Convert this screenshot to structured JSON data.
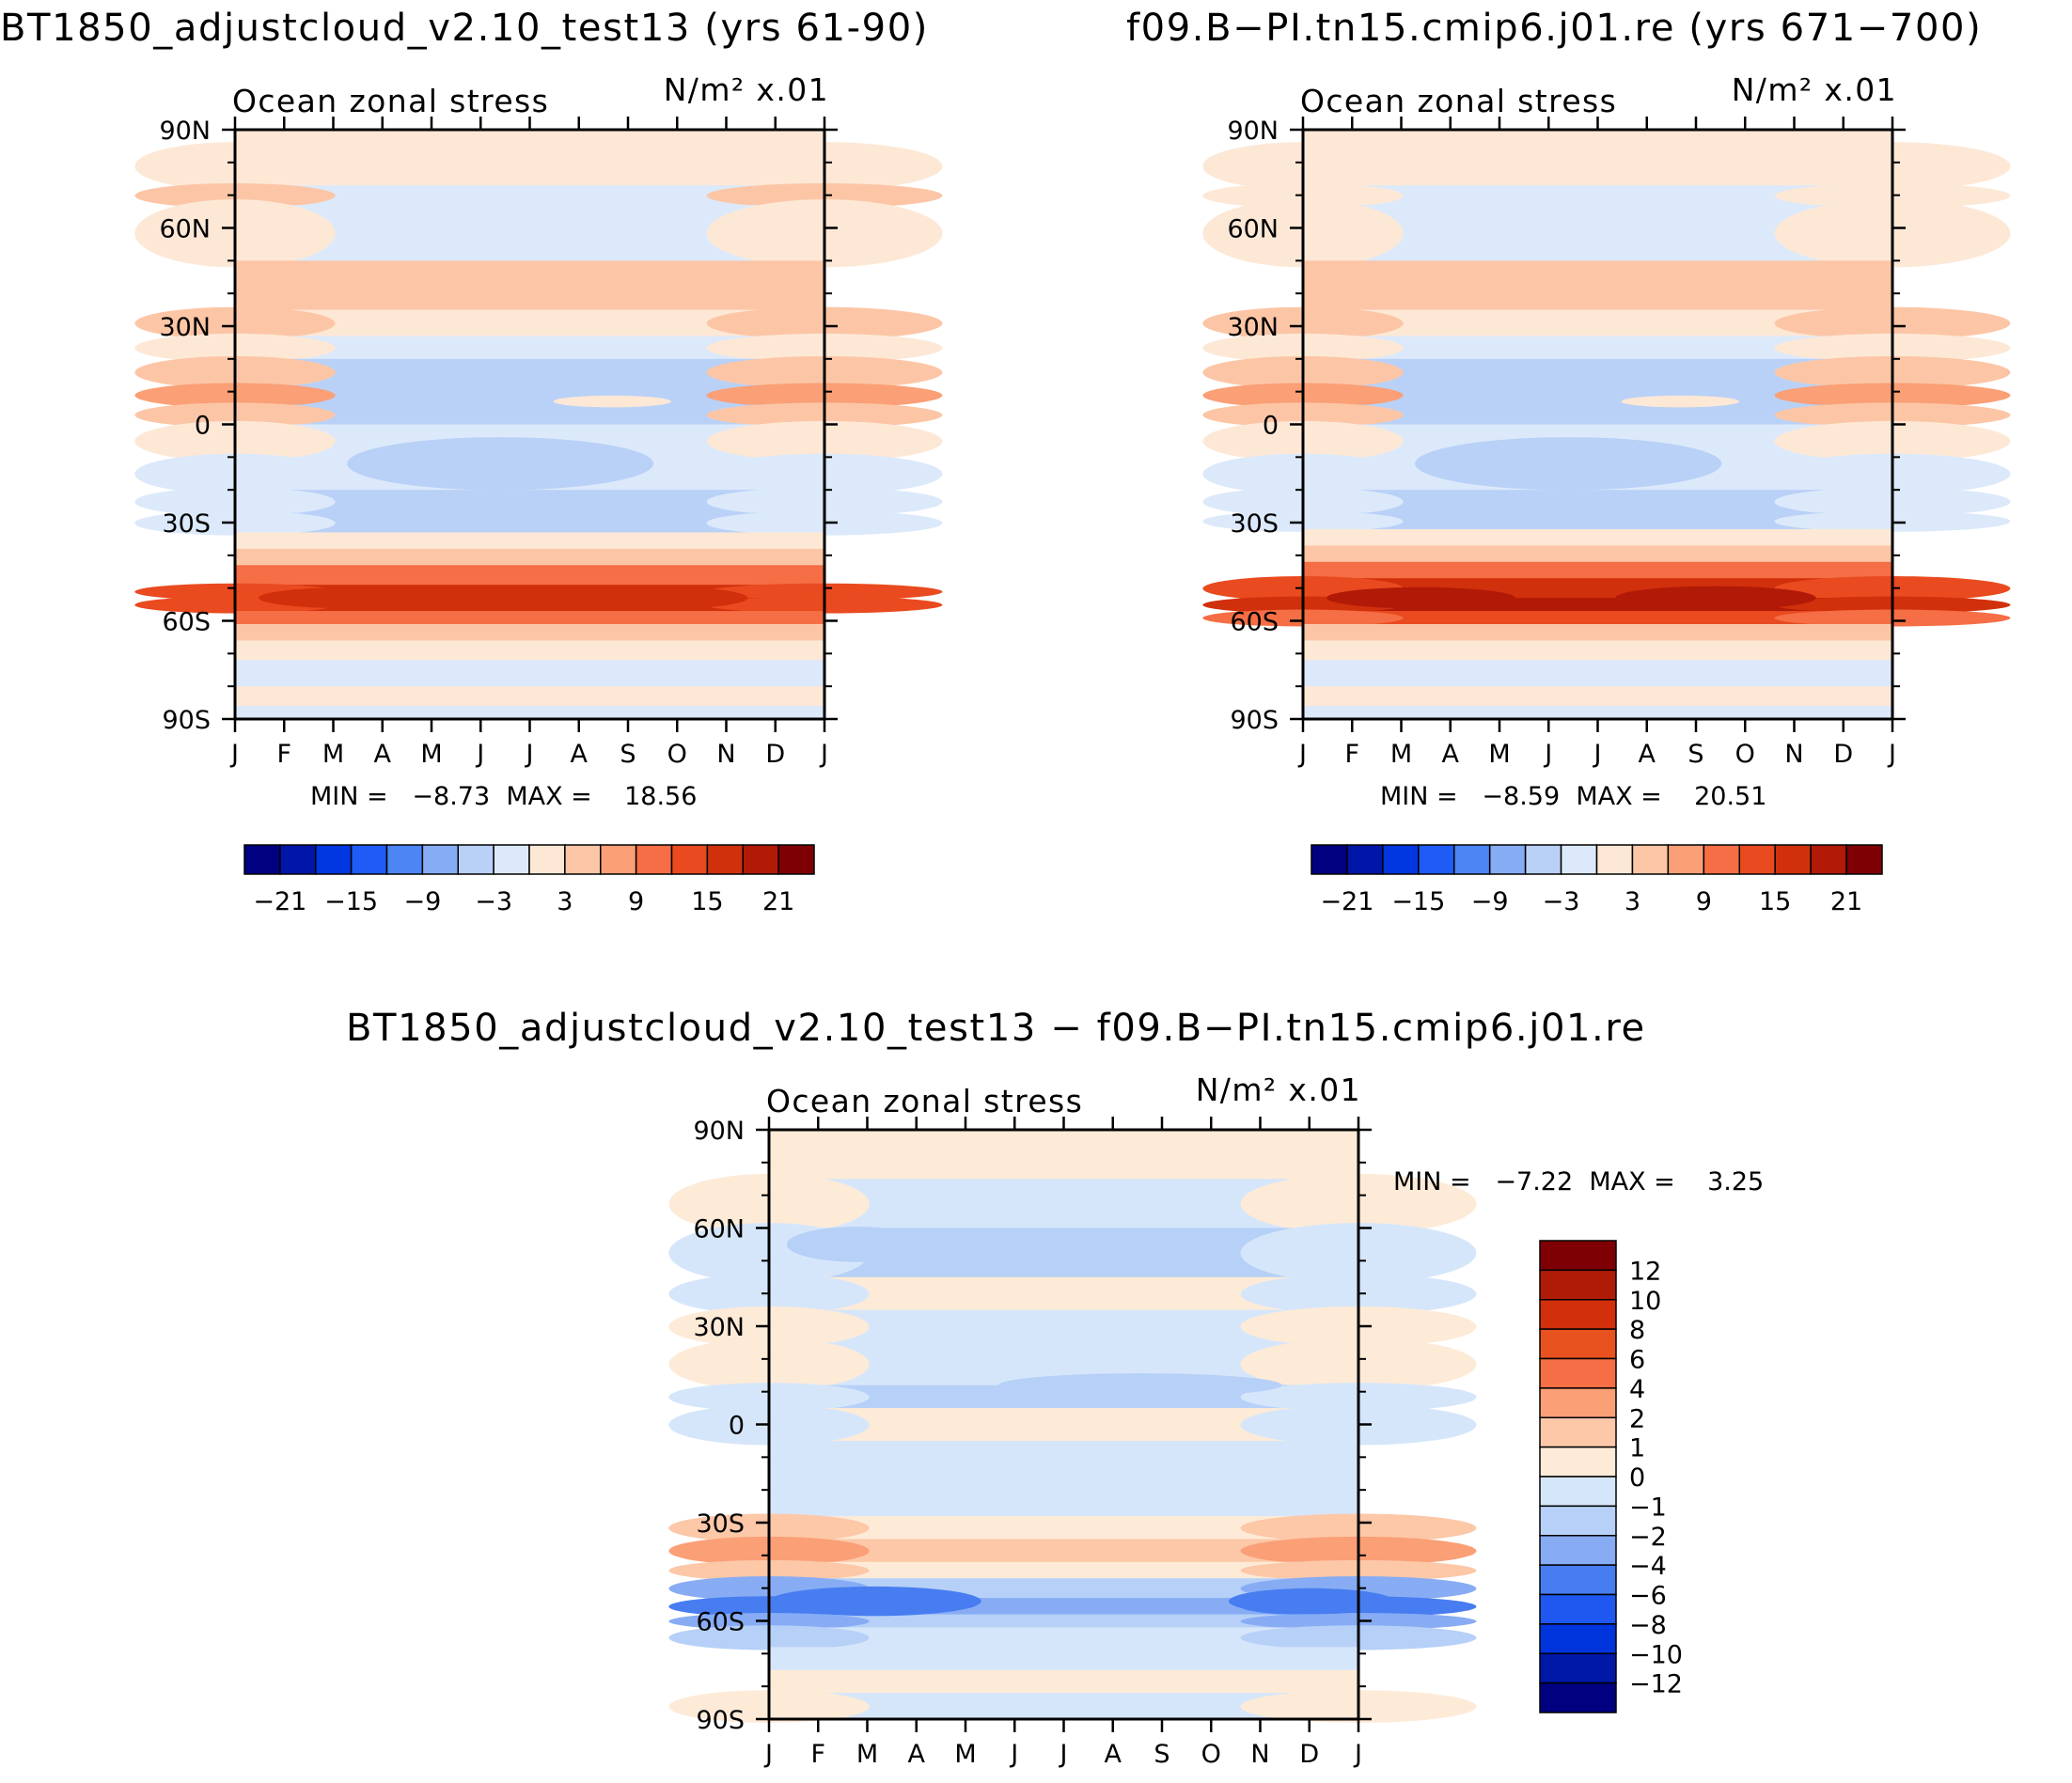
{
  "chart_data": [
    {
      "type": "heatmap",
      "id": "panel_a",
      "title": "BT1850_adjustcloud_v2.10_test13 (yrs 61-90)",
      "subtitle": "Ocean zonal stress",
      "units_label": "N/m² x.01",
      "x_ticks": [
        "J",
        "F",
        "M",
        "A",
        "M",
        "J",
        "J",
        "A",
        "S",
        "O",
        "N",
        "D",
        "J"
      ],
      "y_ticks": [
        "90N",
        "60N",
        "30N",
        "0",
        "30S",
        "60S",
        "90S"
      ],
      "stats_text": "MIN =   −8.73  MAX =    18.56",
      "min": -8.73,
      "max": 18.56,
      "colorbar_labels": [
        "−21",
        "−15",
        "−9",
        "−3",
        "3",
        "9",
        "15",
        "21"
      ],
      "bands": [
        {
          "lat": 85,
          "value": 1.5,
          "edge": 0
        },
        {
          "lat": 73,
          "value": -1.5,
          "edge": 3
        },
        {
          "lat": 67,
          "value": -1.5,
          "edge": 0
        },
        {
          "lat": 50,
          "value": 3,
          "edge": 3
        },
        {
          "lat": 35,
          "value": 1.5,
          "edge": 3
        },
        {
          "lat": 27,
          "value": -1.5,
          "edge": 0
        },
        {
          "lat": 20,
          "value": -4.5,
          "edge": 5
        },
        {
          "lat": 12,
          "value": -6,
          "edge": 8
        },
        {
          "lat": 6,
          "value": -4.5,
          "edge": 3
        },
        {
          "lat": 0,
          "value": -1.5,
          "edge": 0
        },
        {
          "lat": -10,
          "value": -1.5,
          "edge": -3
        },
        {
          "lat": -20,
          "value": -4.5,
          "edge": -3
        },
        {
          "lat": -27,
          "value": -4.5,
          "edge": -1.5
        },
        {
          "lat": -33,
          "value": 1.5,
          "edge": 1.5
        },
        {
          "lat": -38,
          "value": 4.5,
          "edge": 4.5
        },
        {
          "lat": -43,
          "value": 10.5,
          "edge": 10.5
        },
        {
          "lat": -49,
          "value": 16.5,
          "edge": 13.5
        },
        {
          "lat": -53,
          "value": 16.5,
          "edge": 13.5
        },
        {
          "lat": -57,
          "value": 10.5,
          "edge": 10.5
        },
        {
          "lat": -61,
          "value": 4.5,
          "edge": 4.5
        },
        {
          "lat": -66,
          "value": 1.5,
          "edge": 1.5
        },
        {
          "lat": -72,
          "value": -1.5,
          "edge": -1.5
        },
        {
          "lat": -80,
          "value": 1.5,
          "edge": 1.5
        },
        {
          "lat": -86,
          "value": -1.5,
          "edge": -1.5
        },
        {
          "lat": -90,
          "value": -1.5,
          "edge": -1.5
        }
      ]
    },
    {
      "type": "heatmap",
      "id": "panel_b",
      "title": "f09.B−PI.tn15.cmip6.j01.re (yrs 671−700)",
      "subtitle": "Ocean zonal stress",
      "units_label": "N/m² x.01",
      "x_ticks": [
        "J",
        "F",
        "M",
        "A",
        "M",
        "J",
        "J",
        "A",
        "S",
        "O",
        "N",
        "D",
        "J"
      ],
      "y_ticks": [
        "90N",
        "60N",
        "30N",
        "0",
        "30S",
        "60S",
        "90S"
      ],
      "stats_text": "MIN =   −8.59  MAX =    20.51",
      "min": -8.59,
      "max": 20.51,
      "colorbar_labels": [
        "−21",
        "−15",
        "−9",
        "−3",
        "3",
        "9",
        "15",
        "21"
      ],
      "bands": [
        {
          "lat": 85,
          "value": 1.5,
          "edge": 0
        },
        {
          "lat": 73,
          "value": -1.5,
          "edge": 1.5
        },
        {
          "lat": 67,
          "value": -1.5,
          "edge": 0
        },
        {
          "lat": 50,
          "value": 3,
          "edge": 3
        },
        {
          "lat": 35,
          "value": 1.5,
          "edge": 3
        },
        {
          "lat": 27,
          "value": -1.5,
          "edge": 0
        },
        {
          "lat": 20,
          "value": -4.5,
          "edge": 5
        },
        {
          "lat": 12,
          "value": -6,
          "edge": 8
        },
        {
          "lat": 6,
          "value": -4.5,
          "edge": 3
        },
        {
          "lat": 0,
          "value": -1.5,
          "edge": 0
        },
        {
          "lat": -10,
          "value": -1.5,
          "edge": -3
        },
        {
          "lat": -20,
          "value": -4.5,
          "edge": -3
        },
        {
          "lat": -27,
          "value": -4.5,
          "edge": -1.5
        },
        {
          "lat": -32,
          "value": 1.5,
          "edge": 1.5
        },
        {
          "lat": -37,
          "value": 4.5,
          "edge": 4.5
        },
        {
          "lat": -42,
          "value": 10.5,
          "edge": 10.5
        },
        {
          "lat": -47,
          "value": 16.5,
          "edge": 13.5
        },
        {
          "lat": -53,
          "value": 19.5,
          "edge": 16.5
        },
        {
          "lat": -57,
          "value": 13.5,
          "edge": 10.5
        },
        {
          "lat": -61,
          "value": 4.5,
          "edge": 4.5
        },
        {
          "lat": -66,
          "value": 1.5,
          "edge": 1.5
        },
        {
          "lat": -72,
          "value": -1.5,
          "edge": -1.5
        },
        {
          "lat": -80,
          "value": 1.5,
          "edge": 1.5
        },
        {
          "lat": -86,
          "value": -1.5,
          "edge": -1.5
        },
        {
          "lat": -90,
          "value": -1.5,
          "edge": -1.5
        }
      ]
    },
    {
      "type": "heatmap",
      "id": "panel_diff",
      "title": "BT1850_adjustcloud_v2.10_test13 − f09.B−PI.tn15.cmip6.j01.re",
      "subtitle": "Ocean zonal stress",
      "units_label": "N/m² x.01",
      "x_ticks": [
        "J",
        "F",
        "M",
        "A",
        "M",
        "J",
        "J",
        "A",
        "S",
        "O",
        "N",
        "D",
        "J"
      ],
      "y_ticks": [
        "90N",
        "60N",
        "30N",
        "0",
        "30S",
        "60S",
        "90S"
      ],
      "stats_text": "MIN =   −7.22  MAX =    3.25",
      "min": -7.22,
      "max": 3.25,
      "colorbar_labels": [
        "12",
        "10",
        "8",
        "6",
        "4",
        "2",
        "1",
        "0",
        "−1",
        "−2",
        "−4",
        "−6",
        "−8",
        "−10",
        "−12"
      ],
      "bands": [
        {
          "lat": 85,
          "value": 0.5,
          "edge": 0.5
        },
        {
          "lat": 75,
          "value": -0.5,
          "edge": 0.5
        },
        {
          "lat": 60,
          "value": -1.5,
          "edge": -0.5
        },
        {
          "lat": 45,
          "value": 0.5,
          "edge": -0.5
        },
        {
          "lat": 35,
          "value": -0.5,
          "edge": 0.5
        },
        {
          "lat": 25,
          "value": -0.5,
          "edge": 0.5
        },
        {
          "lat": 12,
          "value": -1.5,
          "edge": -0.5
        },
        {
          "lat": 5,
          "value": 0.5,
          "edge": -0.5
        },
        {
          "lat": -5,
          "value": -0.5,
          "edge": -0.5
        },
        {
          "lat": -20,
          "value": -0.5,
          "edge": -0.5
        },
        {
          "lat": -28,
          "value": 0.5,
          "edge": 1.5
        },
        {
          "lat": -35,
          "value": 1.5,
          "edge": 3
        },
        {
          "lat": -42,
          "value": 0.5,
          "edge": 1.5
        },
        {
          "lat": -47,
          "value": -1.5,
          "edge": -3
        },
        {
          "lat": -53,
          "value": -3,
          "edge": -5
        },
        {
          "lat": -58,
          "value": -1.5,
          "edge": -3
        },
        {
          "lat": -62,
          "value": -0.5,
          "edge": -1.5
        },
        {
          "lat": -68,
          "value": -0.5,
          "edge": -0.5
        },
        {
          "lat": -75,
          "value": 0.5,
          "edge": 0.5
        },
        {
          "lat": -82,
          "value": -0.5,
          "edge": 0.5
        },
        {
          "lat": -90,
          "value": 0.5,
          "edge": 0.5
        }
      ]
    }
  ],
  "colors": {
    "abs_scale": [
      "#000080",
      "#0016a8",
      "#0037e0",
      "#1e5cf5",
      "#4d85f5",
      "#86adf4",
      "#b9d1f7",
      "#dce9fa",
      "#fde8d6",
      "#fcc6a6",
      "#fa9f76",
      "#f56e45",
      "#e94a1f",
      "#d1300c",
      "#b11a07",
      "#7f0004"
    ],
    "diff_scale": [
      "#000080",
      "#0018a8",
      "#0034dd",
      "#1e58f0",
      "#477df0",
      "#87acf4",
      "#b6d0f7",
      "#d6e6fa",
      "#fdebd8",
      "#fcc8a8",
      "#fa9f76",
      "#f56e45",
      "#e8521f",
      "#d22f0c",
      "#b01b07",
      "#7f0004"
    ]
  }
}
